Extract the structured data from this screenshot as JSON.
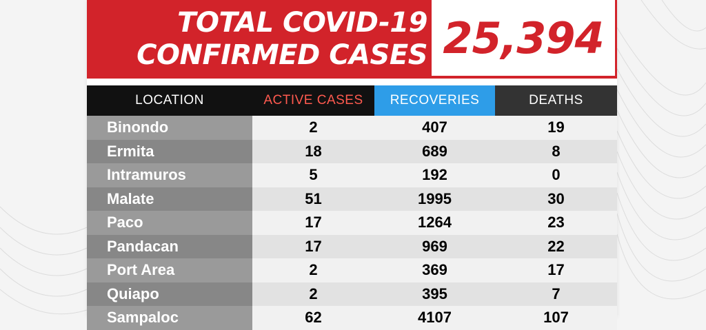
{
  "banner": {
    "title_line1": "TOTAL COVID-19",
    "title_line2": "CONFIRMED CASES",
    "total_cases": "25,394"
  },
  "table": {
    "headers": {
      "location": "LOCATION",
      "active": "ACTIVE CASES",
      "recoveries": "RECOVERIES",
      "deaths": "DEATHS"
    },
    "rows": [
      {
        "location": "Binondo",
        "active": "2",
        "recoveries": "407",
        "deaths": "19"
      },
      {
        "location": "Ermita",
        "active": "18",
        "recoveries": "689",
        "deaths": "8"
      },
      {
        "location": "Intramuros",
        "active": "5",
        "recoveries": "192",
        "deaths": "0"
      },
      {
        "location": "Malate",
        "active": "51",
        "recoveries": "1995",
        "deaths": "30"
      },
      {
        "location": "Paco",
        "active": "17",
        "recoveries": "1264",
        "deaths": "23"
      },
      {
        "location": "Pandacan",
        "active": "17",
        "recoveries": "969",
        "deaths": "22"
      },
      {
        "location": "Port Area",
        "active": "2",
        "recoveries": "369",
        "deaths": "17"
      },
      {
        "location": "Quiapo",
        "active": "2",
        "recoveries": "395",
        "deaths": "7"
      },
      {
        "location": "Sampaloc",
        "active": "62",
        "recoveries": "4107",
        "deaths": "107"
      }
    ]
  },
  "colors": {
    "brand_red": "#d2232a",
    "recoveries_blue": "#2e9de8",
    "active_red_text": "#ff5a4f"
  }
}
